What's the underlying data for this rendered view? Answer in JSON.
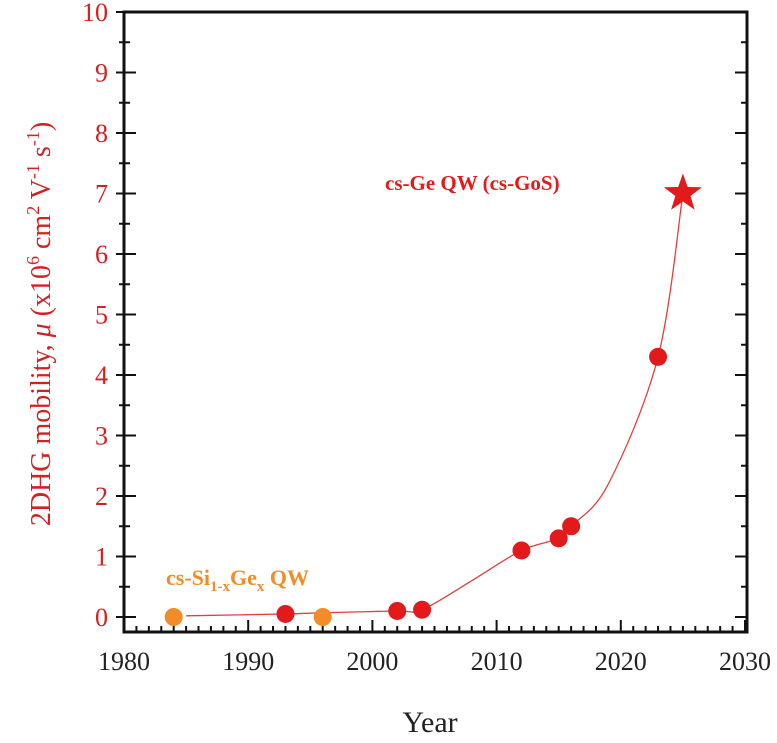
{
  "chart_data": {
    "type": "scatter",
    "xlabel": "Year",
    "ylabel": {
      "main": "2DHG mobility, ",
      "mu": "μ",
      "unit_pre": " (x10",
      "sup6": "6",
      "unit_cm": " cm",
      "sup2": "2",
      "unit_v": " V",
      "supm1a": "-1",
      "unit_s": " s",
      "supm1b": "-1",
      "close": ")"
    },
    "xlim": [
      1980,
      2030
    ],
    "ylim": [
      0,
      10
    ],
    "xticks": [
      "1980",
      "1990",
      "2000",
      "2010",
      "2020",
      "2030"
    ],
    "yticks": [
      "0",
      "1",
      "2",
      "3",
      "4",
      "5",
      "6",
      "7",
      "8",
      "9",
      "10"
    ],
    "colors": {
      "red": "#e31a1c",
      "orange": "#f28c28",
      "axis_label_red": "#d42020",
      "line": "#e04040"
    },
    "series": [
      {
        "marker": "circle",
        "color": "orange",
        "x": [
          1984,
          1996
        ],
        "y": [
          0,
          0
        ]
      },
      {
        "marker": "circle",
        "color": "red",
        "x": [
          1993,
          2002,
          2004,
          2012,
          2015,
          2016,
          2023
        ],
        "y": [
          0.05,
          0.1,
          0.12,
          1.1,
          1.3,
          1.5,
          4.3
        ]
      },
      {
        "marker": "star",
        "color": "red",
        "x": [
          2025
        ],
        "y": [
          7.0
        ]
      }
    ],
    "trend_line": {
      "x": [
        1985,
        1993,
        1996,
        2002,
        2004,
        2008,
        2012,
        2015,
        2016,
        2019,
        2023,
        2025
      ],
      "y": [
        0.02,
        0.05,
        0.07,
        0.1,
        0.12,
        0.6,
        1.1,
        1.3,
        1.5,
        2.2,
        4.3,
        7.0
      ]
    },
    "annotations": {
      "sige": {
        "prefix": "cs-Si",
        "sub1": "1-x",
        "mid": "Ge",
        "sub2": "x",
        "suffix": " QW"
      },
      "ge": "cs-Ge QW (cs-GoS)"
    }
  }
}
